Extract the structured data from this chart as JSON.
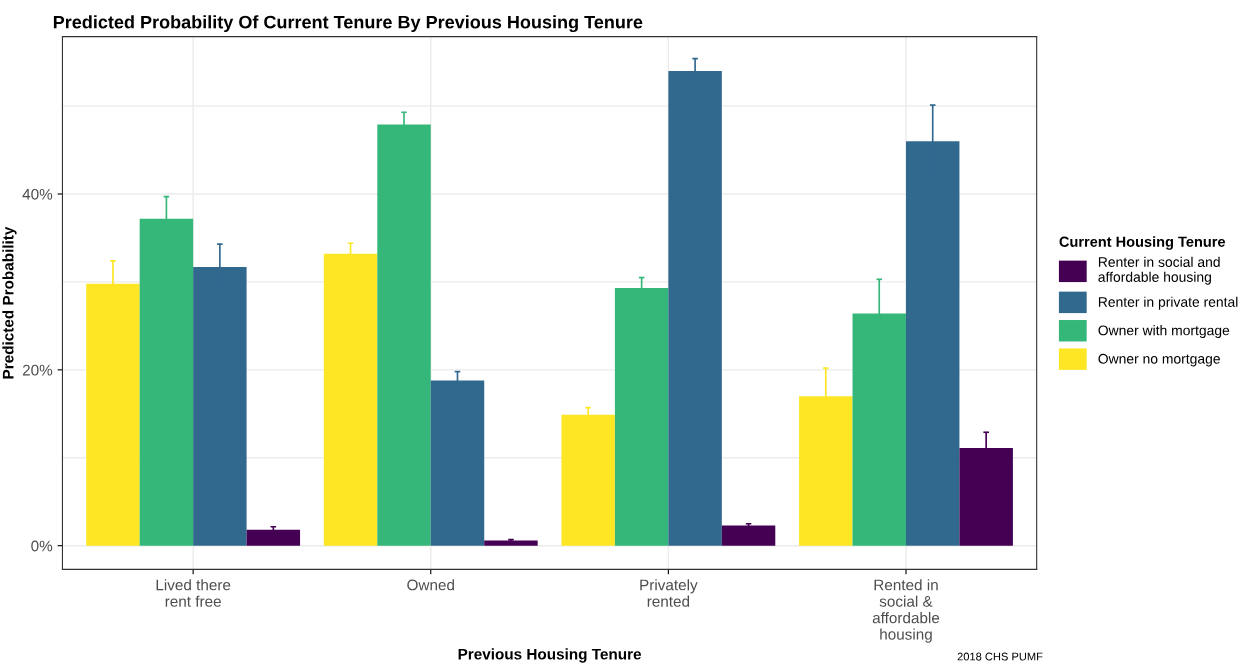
{
  "chart_data": {
    "type": "bar",
    "title": "Predicted Probability Of Current Tenure By Previous Housing Tenure",
    "xlabel": "Previous Housing Tenure",
    "ylabel": "Predicted Probability",
    "legend_title": "Current Housing Tenure",
    "categories": [
      "Lived there\nrent free",
      "Owned",
      "Privately\nrented",
      "Rented in\nsocial &\naffordable\nhousing"
    ],
    "series": [
      {
        "name": "Owner no mortgage",
        "color": "#fde725",
        "values": [
          29.8,
          33.2,
          14.9,
          17.0
        ],
        "errors": [
          2.6,
          1.2,
          0.8,
          3.2
        ]
      },
      {
        "name": "Owner with mortgage",
        "color": "#35b779",
        "values": [
          37.2,
          47.9,
          29.3,
          26.4
        ],
        "errors": [
          2.5,
          1.4,
          1.2,
          3.9
        ]
      },
      {
        "name": "Renter in private rental",
        "color": "#31688e",
        "values": [
          31.7,
          18.8,
          54.0,
          46.0
        ],
        "errors": [
          2.6,
          1.0,
          1.4,
          4.1
        ]
      },
      {
        "name": "Renter in social and\naffordable housing",
        "color": "#440154",
        "values": [
          1.8,
          0.6,
          2.3,
          11.1
        ],
        "errors": [
          0.35,
          0.1,
          0.2,
          1.8
        ]
      }
    ],
    "ylim": [
      -2.7,
      57.9
    ],
    "yticks": [
      {
        "value": 0,
        "label": "0%"
      },
      {
        "value": 10,
        "label": null
      },
      {
        "value": 20,
        "label": "20%"
      },
      {
        "value": 30,
        "label": null
      },
      {
        "value": 40,
        "label": "40%"
      },
      {
        "value": 50,
        "label": null
      }
    ],
    "grid": true,
    "legend": "right",
    "annotations": [
      "2018 CHS PUMF"
    ]
  }
}
